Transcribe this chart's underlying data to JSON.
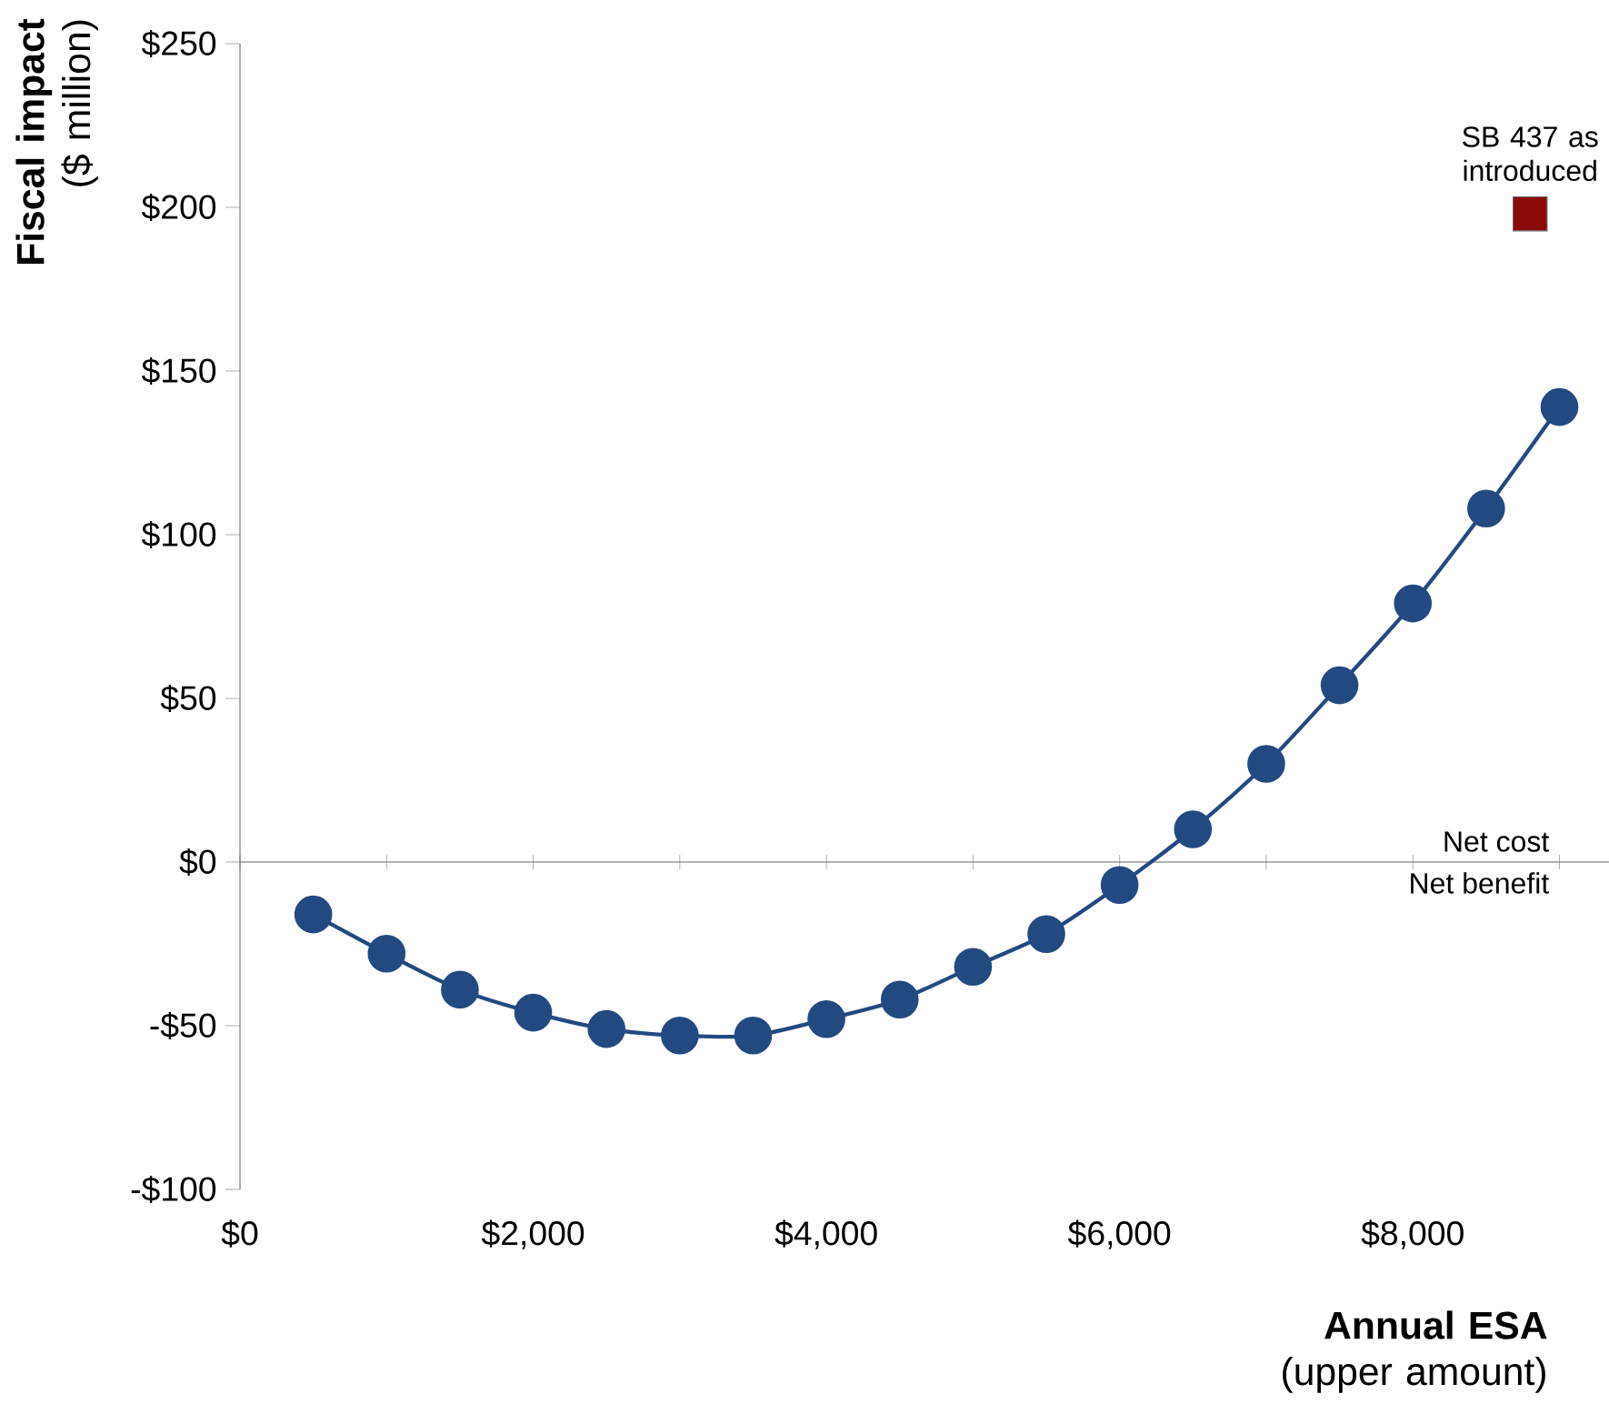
{
  "chart_data": {
    "type": "line",
    "xlabel": "**Annual ESA** (upper amount)",
    "ylabel": "**Fiscal impact** ($ million)",
    "xlim": [
      0,
      9400
    ],
    "ylim": [
      -100,
      250
    ],
    "xticks": [
      {
        "value": 0,
        "label": "$0"
      },
      {
        "value": 1000,
        "label": null
      },
      {
        "value": 2000,
        "label": "$2,000"
      },
      {
        "value": 3000,
        "label": null
      },
      {
        "value": 4000,
        "label": "$4,000"
      },
      {
        "value": 5000,
        "label": null
      },
      {
        "value": 6000,
        "label": "$6,000"
      },
      {
        "value": 7000,
        "label": null
      },
      {
        "value": 8000,
        "label": "$8,000"
      },
      {
        "value": 9000,
        "label": null
      }
    ],
    "yticks": [
      {
        "value": -100,
        "label": "-$100"
      },
      {
        "value": -50,
        "label": "-$50"
      },
      {
        "value": 0,
        "label": "$0"
      },
      {
        "value": 50,
        "label": "$50"
      },
      {
        "value": 100,
        "label": "$100"
      },
      {
        "value": 150,
        "label": "$150"
      },
      {
        "value": 200,
        "label": "$200"
      },
      {
        "value": 250,
        "label": "$250"
      }
    ],
    "annotations": [
      "Net cost",
      "Net benefit"
    ],
    "series": [
      {
        "color": "#234a80",
        "marker": "circle",
        "x": [
          500,
          1000,
          1500,
          2000,
          2500,
          3000,
          3500,
          4000,
          4500,
          5000,
          5500,
          6000,
          6500,
          7000,
          7500,
          8000,
          8500,
          9000
        ],
        "values": [
          -16,
          -28,
          -39,
          -46,
          -51,
          -53,
          -53,
          -48,
          -42,
          -32,
          -22,
          -7,
          10,
          30,
          54,
          79,
          108,
          139
        ]
      },
      {
        "type": "scatter",
        "name": "SB 437 as introduced",
        "color": "#8b0a0a",
        "marker": "square",
        "x": [
          8800
        ],
        "values": [
          198
        ]
      }
    ]
  }
}
